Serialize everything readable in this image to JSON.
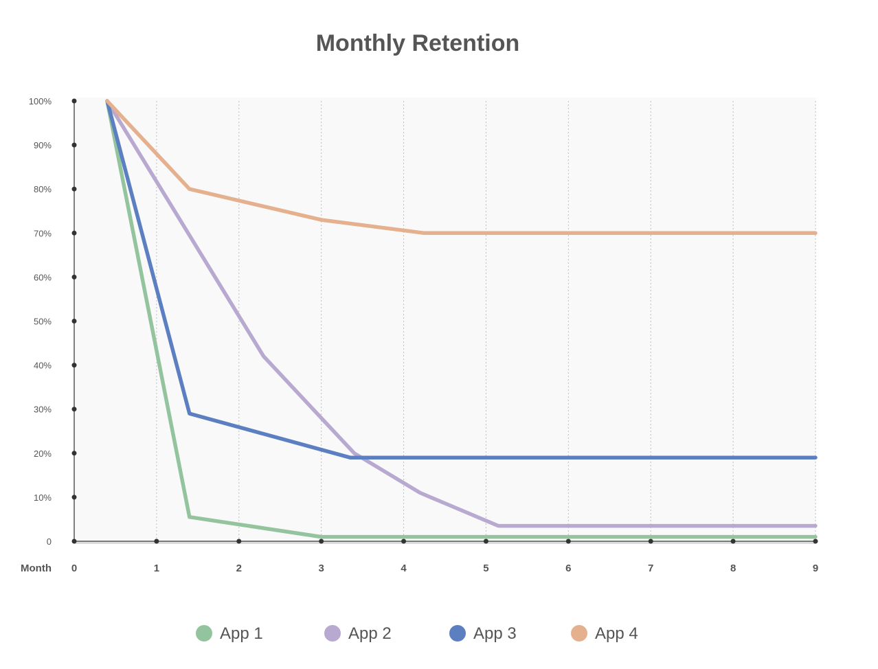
{
  "chart_data": {
    "type": "line",
    "title": "Monthly Retention",
    "xlabel": "Month",
    "ylabel": "",
    "x": [
      0,
      1,
      2,
      3,
      4,
      5,
      6,
      7,
      8,
      9
    ],
    "x_ticks": [
      "0",
      "1",
      "2",
      "3",
      "4",
      "5",
      "6",
      "7",
      "8",
      "9"
    ],
    "y_ticks": [
      "0",
      "10%",
      "20%",
      "30%",
      "40%",
      "50%",
      "60%",
      "70%",
      "80%",
      "90%",
      "100%"
    ],
    "xlim": [
      0,
      9
    ],
    "ylim": [
      0,
      100
    ],
    "grid": "vertical dotted",
    "legend_position": "bottom",
    "series": [
      {
        "name": "App 1",
        "color": "#93c49e",
        "points": [
          [
            0.4,
            100
          ],
          [
            1.4,
            5.5
          ],
          [
            3.0,
            1
          ],
          [
            9.0,
            1
          ]
        ]
      },
      {
        "name": "App 2",
        "color": "#b8a9d0",
        "points": [
          [
            0.4,
            100
          ],
          [
            2.3,
            42
          ],
          [
            3.4,
            20
          ],
          [
            4.2,
            11
          ],
          [
            5.15,
            3.5
          ],
          [
            9.0,
            3.5
          ]
        ]
      },
      {
        "name": "App 3",
        "color": "#5b7fc0",
        "points": [
          [
            0.4,
            100
          ],
          [
            1.4,
            29
          ],
          [
            3.35,
            19
          ],
          [
            9.0,
            19
          ]
        ]
      },
      {
        "name": "App 4",
        "color": "#e4b08e",
        "points": [
          [
            0.4,
            100
          ],
          [
            1.4,
            80
          ],
          [
            3.0,
            73
          ],
          [
            4.25,
            70
          ],
          [
            9.0,
            70
          ]
        ]
      }
    ]
  }
}
